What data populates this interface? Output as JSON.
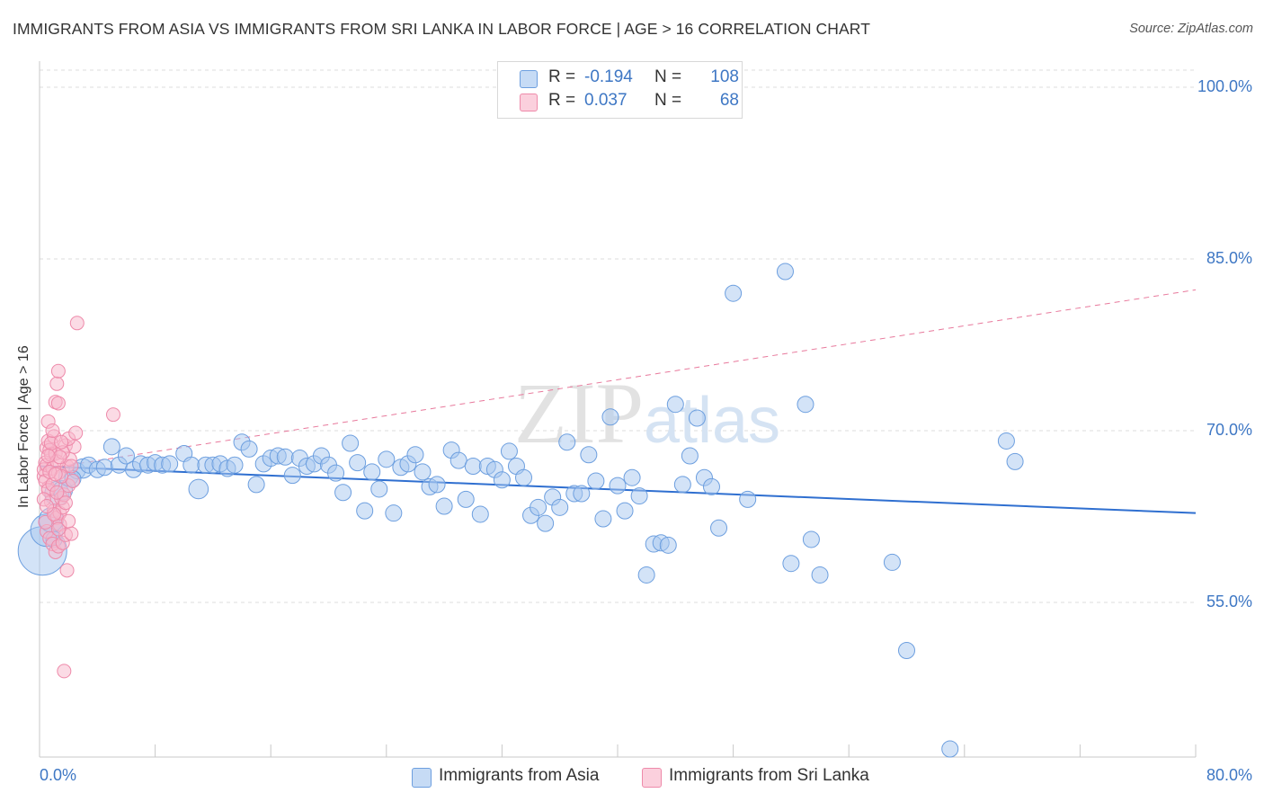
{
  "title": "IMMIGRANTS FROM ASIA VS IMMIGRANTS FROM SRI LANKA IN LABOR FORCE | AGE > 16 CORRELATION CHART",
  "source": "Source: ZipAtlas.com",
  "watermark": "ZIPatlas",
  "legend": {
    "rows": [
      {
        "r_label": "R =",
        "r_value": "-0.194",
        "n_label": "N =",
        "n_value": "108",
        "color": "#a8c8f0",
        "border": "#6d9fdf"
      },
      {
        "r_label": "R =",
        "r_value": "0.037",
        "n_label": "N =",
        "n_value": "68",
        "color": "#f8b8cc",
        "border": "#ee8aaa"
      }
    ]
  },
  "bottom_legend": [
    {
      "label": "Immigrants from Asia",
      "color": "#a8c8f0",
      "border": "#6d9fdf"
    },
    {
      "label": "Immigrants from Sri Lanka",
      "color": "#f8b8cc",
      "border": "#ee8aaa"
    }
  ],
  "chart_data": {
    "type": "scatter",
    "title": "IMMIGRANTS FROM ASIA VS IMMIGRANTS FROM SRI LANKA IN LABOR FORCE | AGE > 16 CORRELATION CHART",
    "xlabel": "",
    "ylabel": "In Labor Force | Age > 16",
    "xlim": [
      0,
      80
    ],
    "ylim": [
      40,
      102
    ],
    "x_tick_labels": [
      "0.0%",
      "80.0%"
    ],
    "y_ticks": [
      55,
      70,
      85,
      100
    ],
    "y_tick_labels": [
      "55.0%",
      "70.0%",
      "85.0%",
      "100.0%"
    ],
    "grid": true,
    "legend_position": "top-center",
    "series": [
      {
        "name": "Immigrants from Asia",
        "color": "#a8c8f0",
        "stroke": "#6d9fdf",
        "trend": {
          "x": [
            0,
            80
          ],
          "y": [
            66.9,
            62.8
          ],
          "color": "#2f6fd0",
          "dashed": false
        },
        "points": [
          [
            0.2,
            59.5,
            3
          ],
          [
            0.5,
            61.3,
            2
          ],
          [
            0.8,
            62.2,
            1.5
          ],
          [
            1.2,
            64.5,
            1.5
          ],
          [
            1.6,
            64.8,
            1.2
          ],
          [
            2.0,
            66.0,
            1.2
          ],
          [
            2.6,
            66.5,
            1
          ],
          [
            3.0,
            66.7,
            1.2
          ],
          [
            3.4,
            67.0,
            1
          ],
          [
            4.0,
            66.6,
            1
          ],
          [
            4.5,
            66.8,
            1
          ],
          [
            5.0,
            68.6,
            1
          ],
          [
            5.5,
            67.0,
            1
          ],
          [
            6.0,
            67.8,
            1
          ],
          [
            6.5,
            66.6,
            1
          ],
          [
            7.0,
            67.1,
            1
          ],
          [
            7.5,
            67.0,
            1
          ],
          [
            8.0,
            67.2,
            1
          ],
          [
            8.5,
            67.0,
            1
          ],
          [
            9.0,
            67.1,
            1
          ],
          [
            10.0,
            68.0,
            1
          ],
          [
            10.5,
            67.0,
            1
          ],
          [
            11.0,
            64.9,
            1.2
          ],
          [
            11.5,
            67.0,
            1
          ],
          [
            12.0,
            67.0,
            1
          ],
          [
            12.5,
            67.1,
            1
          ],
          [
            13.0,
            66.7,
            1
          ],
          [
            13.5,
            67.0,
            1
          ],
          [
            14.0,
            69.0,
            1
          ],
          [
            14.5,
            68.4,
            1
          ],
          [
            15.0,
            65.3,
            1
          ],
          [
            15.5,
            67.1,
            1
          ],
          [
            16.0,
            67.6,
            1
          ],
          [
            16.5,
            67.8,
            1
          ],
          [
            17.0,
            67.7,
            1
          ],
          [
            17.5,
            66.1,
            1
          ],
          [
            18.0,
            67.6,
            1
          ],
          [
            18.5,
            66.9,
            1
          ],
          [
            19.0,
            67.1,
            1
          ],
          [
            19.5,
            67.8,
            1
          ],
          [
            20.0,
            67.0,
            1
          ],
          [
            20.5,
            66.3,
            1
          ],
          [
            21.0,
            64.6,
            1
          ],
          [
            21.5,
            68.9,
            1
          ],
          [
            22.0,
            67.2,
            1
          ],
          [
            22.5,
            63.0,
            1
          ],
          [
            23.0,
            66.4,
            1
          ],
          [
            23.5,
            64.9,
            1
          ],
          [
            24.0,
            67.5,
            1
          ],
          [
            24.5,
            62.8,
            1
          ],
          [
            25.0,
            66.8,
            1
          ],
          [
            25.5,
            67.1,
            1
          ],
          [
            26.0,
            67.9,
            1
          ],
          [
            26.5,
            66.4,
            1
          ],
          [
            27.0,
            65.1,
            1
          ],
          [
            27.5,
            65.3,
            1
          ],
          [
            28.0,
            63.4,
            1
          ],
          [
            28.5,
            68.3,
            1
          ],
          [
            29.0,
            67.4,
            1
          ],
          [
            29.5,
            64.0,
            1
          ],
          [
            30.0,
            66.9,
            1
          ],
          [
            30.5,
            62.7,
            1
          ],
          [
            31.0,
            66.9,
            1
          ],
          [
            31.5,
            66.6,
            1
          ],
          [
            32.0,
            65.7,
            1
          ],
          [
            32.5,
            68.2,
            1
          ],
          [
            33.0,
            66.9,
            1
          ],
          [
            33.5,
            65.9,
            1
          ],
          [
            34.0,
            62.6,
            1
          ],
          [
            34.5,
            63.3,
            1
          ],
          [
            35.0,
            61.9,
            1
          ],
          [
            35.5,
            64.2,
            1
          ],
          [
            36.0,
            63.3,
            1
          ],
          [
            36.5,
            69.0,
            1
          ],
          [
            37.0,
            64.5,
            1
          ],
          [
            37.5,
            64.5,
            1
          ],
          [
            38.0,
            67.9,
            1
          ],
          [
            38.5,
            65.6,
            1
          ],
          [
            39.0,
            62.3,
            1
          ],
          [
            39.5,
            71.2,
            1
          ],
          [
            40.0,
            65.2,
            1
          ],
          [
            40.5,
            63.0,
            1
          ],
          [
            41.0,
            65.9,
            1
          ],
          [
            41.5,
            64.3,
            1
          ],
          [
            42.0,
            57.4,
            1
          ],
          [
            42.5,
            60.1,
            1
          ],
          [
            43.0,
            60.2,
            1
          ],
          [
            43.5,
            60.0,
            1
          ],
          [
            44.0,
            72.3,
            1
          ],
          [
            44.5,
            65.3,
            1
          ],
          [
            45.0,
            67.8,
            1
          ],
          [
            45.5,
            71.1,
            1
          ],
          [
            46.0,
            65.9,
            1
          ],
          [
            46.5,
            65.1,
            1
          ],
          [
            47.0,
            61.5,
            1
          ],
          [
            48.0,
            82.0,
            1
          ],
          [
            49.0,
            64.0,
            1
          ],
          [
            52.0,
            58.4,
            1
          ],
          [
            51.6,
            83.9,
            1
          ],
          [
            53.0,
            72.3,
            1
          ],
          [
            53.4,
            60.5,
            1
          ],
          [
            54.0,
            57.4,
            1
          ],
          [
            59.0,
            58.5,
            1
          ],
          [
            60.0,
            50.8,
            1
          ],
          [
            63.0,
            42.2,
            1
          ],
          [
            66.9,
            69.1,
            1
          ],
          [
            67.5,
            67.3,
            1
          ],
          [
            1.0,
            60.5,
            1
          ],
          [
            2.3,
            65.8,
            1
          ]
        ]
      },
      {
        "name": "Immigrants from Sri Lanka",
        "color": "#f8b8cc",
        "stroke": "#ee8aaa",
        "trend": {
          "x": [
            0,
            80
          ],
          "y": [
            66.6,
            82.3
          ],
          "color": "#e8799c",
          "dashed": true
        },
        "points": [
          [
            0.3,
            66.0
          ],
          [
            0.4,
            67.2
          ],
          [
            0.5,
            68.5
          ],
          [
            0.6,
            65.0
          ],
          [
            0.3,
            66.6
          ],
          [
            0.5,
            67.0
          ],
          [
            0.6,
            69.1
          ],
          [
            0.7,
            68.3
          ],
          [
            0.8,
            67.9
          ],
          [
            0.9,
            66.7
          ],
          [
            1.0,
            69.5
          ],
          [
            1.1,
            68.0
          ],
          [
            1.2,
            67.3
          ],
          [
            1.3,
            66.3
          ],
          [
            0.4,
            65.6
          ],
          [
            0.6,
            64.8
          ],
          [
            0.8,
            63.8
          ],
          [
            1.0,
            63.0
          ],
          [
            1.2,
            62.4
          ],
          [
            1.4,
            61.8
          ],
          [
            0.5,
            61.2
          ],
          [
            0.7,
            60.6
          ],
          [
            0.9,
            60.1
          ],
          [
            1.1,
            59.4
          ],
          [
            1.3,
            59.9
          ],
          [
            1.6,
            60.2
          ],
          [
            1.8,
            60.9
          ],
          [
            2.2,
            61.0
          ],
          [
            1.4,
            62.8
          ],
          [
            1.6,
            63.3
          ],
          [
            1.5,
            64.1
          ],
          [
            1.7,
            64.4
          ],
          [
            2.0,
            65.2
          ],
          [
            2.3,
            65.6
          ],
          [
            1.9,
            66.9
          ],
          [
            2.1,
            67.5
          ],
          [
            1.8,
            68.7
          ],
          [
            2.4,
            68.6
          ],
          [
            2.0,
            69.3
          ],
          [
            2.5,
            69.8
          ],
          [
            0.6,
            70.8
          ],
          [
            1.1,
            72.5
          ],
          [
            1.3,
            72.4
          ],
          [
            1.2,
            74.1
          ],
          [
            1.3,
            75.2
          ],
          [
            2.6,
            79.4
          ],
          [
            5.1,
            71.4
          ],
          [
            1.9,
            57.8
          ],
          [
            1.7,
            49.0
          ],
          [
            0.3,
            64.0
          ],
          [
            0.9,
            65.3
          ],
          [
            1.5,
            66.0
          ],
          [
            0.8,
            68.9
          ],
          [
            1.6,
            68.1
          ],
          [
            0.4,
            62.0
          ],
          [
            1.0,
            62.7
          ],
          [
            1.2,
            64.6
          ],
          [
            1.8,
            63.7
          ],
          [
            0.7,
            66.4
          ],
          [
            1.4,
            67.7
          ],
          [
            2.2,
            66.9
          ],
          [
            0.5,
            63.4
          ],
          [
            1.3,
            61.4
          ],
          [
            2.0,
            62.1
          ],
          [
            0.9,
            70.0
          ],
          [
            1.5,
            69.0
          ],
          [
            0.6,
            67.8
          ],
          [
            1.1,
            66.2
          ]
        ]
      }
    ]
  }
}
